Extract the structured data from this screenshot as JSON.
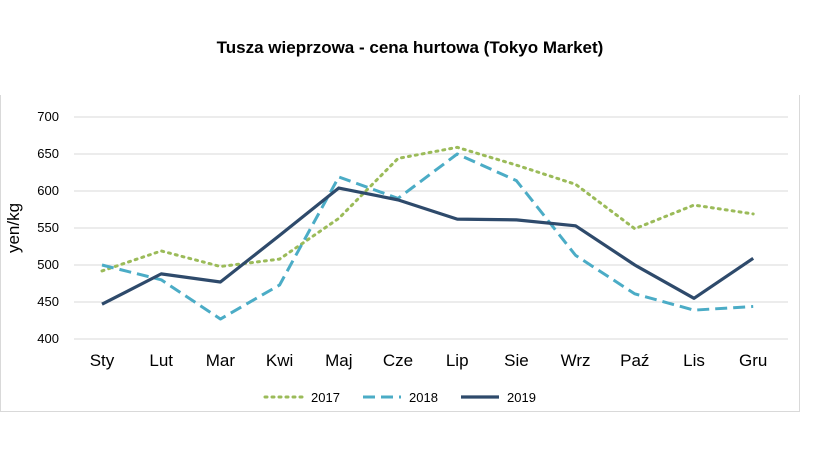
{
  "chart_data": {
    "type": "line",
    "title": "Tusza wieprzowa - cena hurtowa (Tokyo Market)",
    "xlabel": "",
    "ylabel": "yen/kg",
    "ylim": [
      400,
      700
    ],
    "yticks": [
      400,
      450,
      500,
      550,
      600,
      650,
      700
    ],
    "grid": true,
    "legend_position": "bottom",
    "categories": [
      "Sty",
      "Lut",
      "Mar",
      "Kwi",
      "Maj",
      "Cze",
      "Lip",
      "Sie",
      "Wrz",
      "Paź",
      "Lis",
      "Gru"
    ],
    "series": [
      {
        "name": "2017",
        "style": "dotted",
        "color": "#9bbb59",
        "values": [
          492,
          519,
          498,
          508,
          563,
          644,
          659,
          635,
          609,
          549,
          581,
          569
        ]
      },
      {
        "name": "2018",
        "style": "dashed",
        "color": "#4bacc6",
        "values": [
          500,
          480,
          427,
          473,
          619,
          590,
          650,
          614,
          513,
          461,
          439,
          444
        ]
      },
      {
        "name": "2019",
        "style": "solid",
        "color": "#2e4a6b",
        "values": [
          447,
          488,
          477,
          540,
          604,
          588,
          562,
          561,
          553,
          500,
          455,
          509
        ]
      }
    ]
  }
}
